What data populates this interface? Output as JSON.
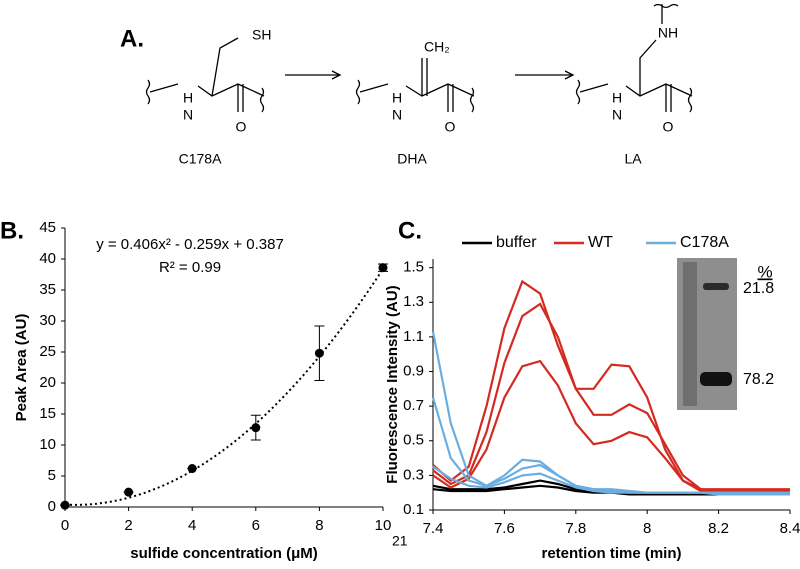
{
  "panel_a": {
    "label": "A.",
    "compounds": [
      {
        "name": "C178A",
        "atoms": [
          "SH",
          "N",
          "H",
          "O"
        ]
      },
      {
        "name": "DHA",
        "atoms": [
          "CH₂",
          "N",
          "H",
          "O"
        ]
      },
      {
        "name": "LA",
        "atoms": [
          "NH",
          "N",
          "H",
          "O"
        ]
      }
    ]
  },
  "chart_data": [
    {
      "type": "scatter",
      "panel_label": "B.",
      "x_label": "sulfide concentration (μM)",
      "y_label": "Peak Area (AU)",
      "x": [
        0,
        2,
        4,
        6,
        8,
        10
      ],
      "values": [
        0.3,
        2.4,
        6.2,
        12.8,
        24.8,
        38.6
      ],
      "errors": [
        0,
        0,
        0,
        2,
        4.4,
        0.6
      ],
      "color": "#000000",
      "fit": {
        "equation": "y = 0.406x² - 0.259x + 0.387",
        "r_squared": "R² = 0.99",
        "coefficients": [
          0.406,
          -0.259,
          0.387
        ]
      },
      "xlim": [
        0,
        10
      ],
      "xticks": [
        0,
        2,
        4,
        6,
        8,
        10
      ],
      "ylim": [
        0,
        45
      ],
      "yticks": [
        0,
        5,
        10,
        15,
        20,
        25,
        30,
        35,
        40,
        45
      ]
    },
    {
      "type": "line",
      "panel_label": "C.",
      "x_label": "retention time (min)",
      "y_label": "Fluorescence Intensity (AU)",
      "x": [
        7.4,
        7.45,
        7.5,
        7.55,
        7.6,
        7.65,
        7.7,
        7.75,
        7.8,
        7.85,
        7.9,
        7.95,
        8.0,
        8.05,
        8.1,
        8.15,
        8.2,
        8.25,
        8.3,
        8.35,
        8.4
      ],
      "series": [
        {
          "name": "buffer",
          "color": "#000000",
          "traces": [
            [
              0.24,
              0.22,
              0.22,
              0.22,
              0.23,
              0.25,
              0.27,
              0.25,
              0.22,
              0.21,
              0.2,
              0.2,
              0.2,
              0.2,
              0.2,
              0.2,
              0.2,
              0.2,
              0.2,
              0.2,
              0.2
            ],
            [
              0.22,
              0.21,
              0.21,
              0.21,
              0.22,
              0.23,
              0.24,
              0.23,
              0.21,
              0.2,
              0.2,
              0.19,
              0.19,
              0.19,
              0.19,
              0.19,
              0.19,
              0.19,
              0.19,
              0.19,
              0.19
            ]
          ]
        },
        {
          "name": "WT",
          "color": "#d42a20",
          "traces": [
            [
              0.36,
              0.27,
              0.35,
              0.7,
              1.15,
              1.42,
              1.35,
              1.05,
              0.8,
              0.8,
              0.94,
              0.93,
              0.75,
              0.45,
              0.27,
              0.22,
              0.22,
              0.22,
              0.22,
              0.22,
              0.22
            ],
            [
              0.33,
              0.25,
              0.3,
              0.55,
              0.95,
              1.22,
              1.29,
              1.1,
              0.8,
              0.65,
              0.65,
              0.71,
              0.66,
              0.48,
              0.3,
              0.22,
              0.21,
              0.21,
              0.21,
              0.21,
              0.21
            ],
            [
              0.3,
              0.23,
              0.28,
              0.45,
              0.75,
              0.93,
              0.96,
              0.82,
              0.6,
              0.48,
              0.5,
              0.55,
              0.52,
              0.4,
              0.27,
              0.21,
              0.21,
              0.21,
              0.21,
              0.21,
              0.21
            ]
          ]
        },
        {
          "name": "C178A",
          "color": "#6aaee0",
          "traces": [
            [
              1.13,
              0.6,
              0.3,
              0.24,
              0.3,
              0.39,
              0.38,
              0.3,
              0.24,
              0.22,
              0.22,
              0.21,
              0.2,
              0.2,
              0.2,
              0.2,
              0.2,
              0.2,
              0.2,
              0.2,
              0.2
            ],
            [
              0.75,
              0.4,
              0.27,
              0.24,
              0.28,
              0.34,
              0.36,
              0.3,
              0.24,
              0.22,
              0.21,
              0.2,
              0.2,
              0.2,
              0.2,
              0.2,
              0.2,
              0.2,
              0.2,
              0.2,
              0.2
            ],
            [
              0.35,
              0.28,
              0.24,
              0.23,
              0.26,
              0.3,
              0.31,
              0.27,
              0.23,
              0.21,
              0.2,
              0.2,
              0.2,
              0.2,
              0.2,
              0.2,
              0.19,
              0.19,
              0.19,
              0.19,
              0.19
            ]
          ]
        }
      ],
      "xlim": [
        7.4,
        8.4
      ],
      "xticks": [
        7.4,
        7.6,
        7.8,
        8,
        8.2,
        8.4
      ],
      "ylim": [
        0.1,
        1.55
      ],
      "yticks": [
        0.1,
        0.3,
        0.5,
        0.7,
        0.9,
        1.1,
        1.3,
        1.5
      ]
    }
  ],
  "gel_inset": {
    "header": "%",
    "labels": [
      "21.8",
      "78.2"
    ]
  },
  "corner_text": "21"
}
